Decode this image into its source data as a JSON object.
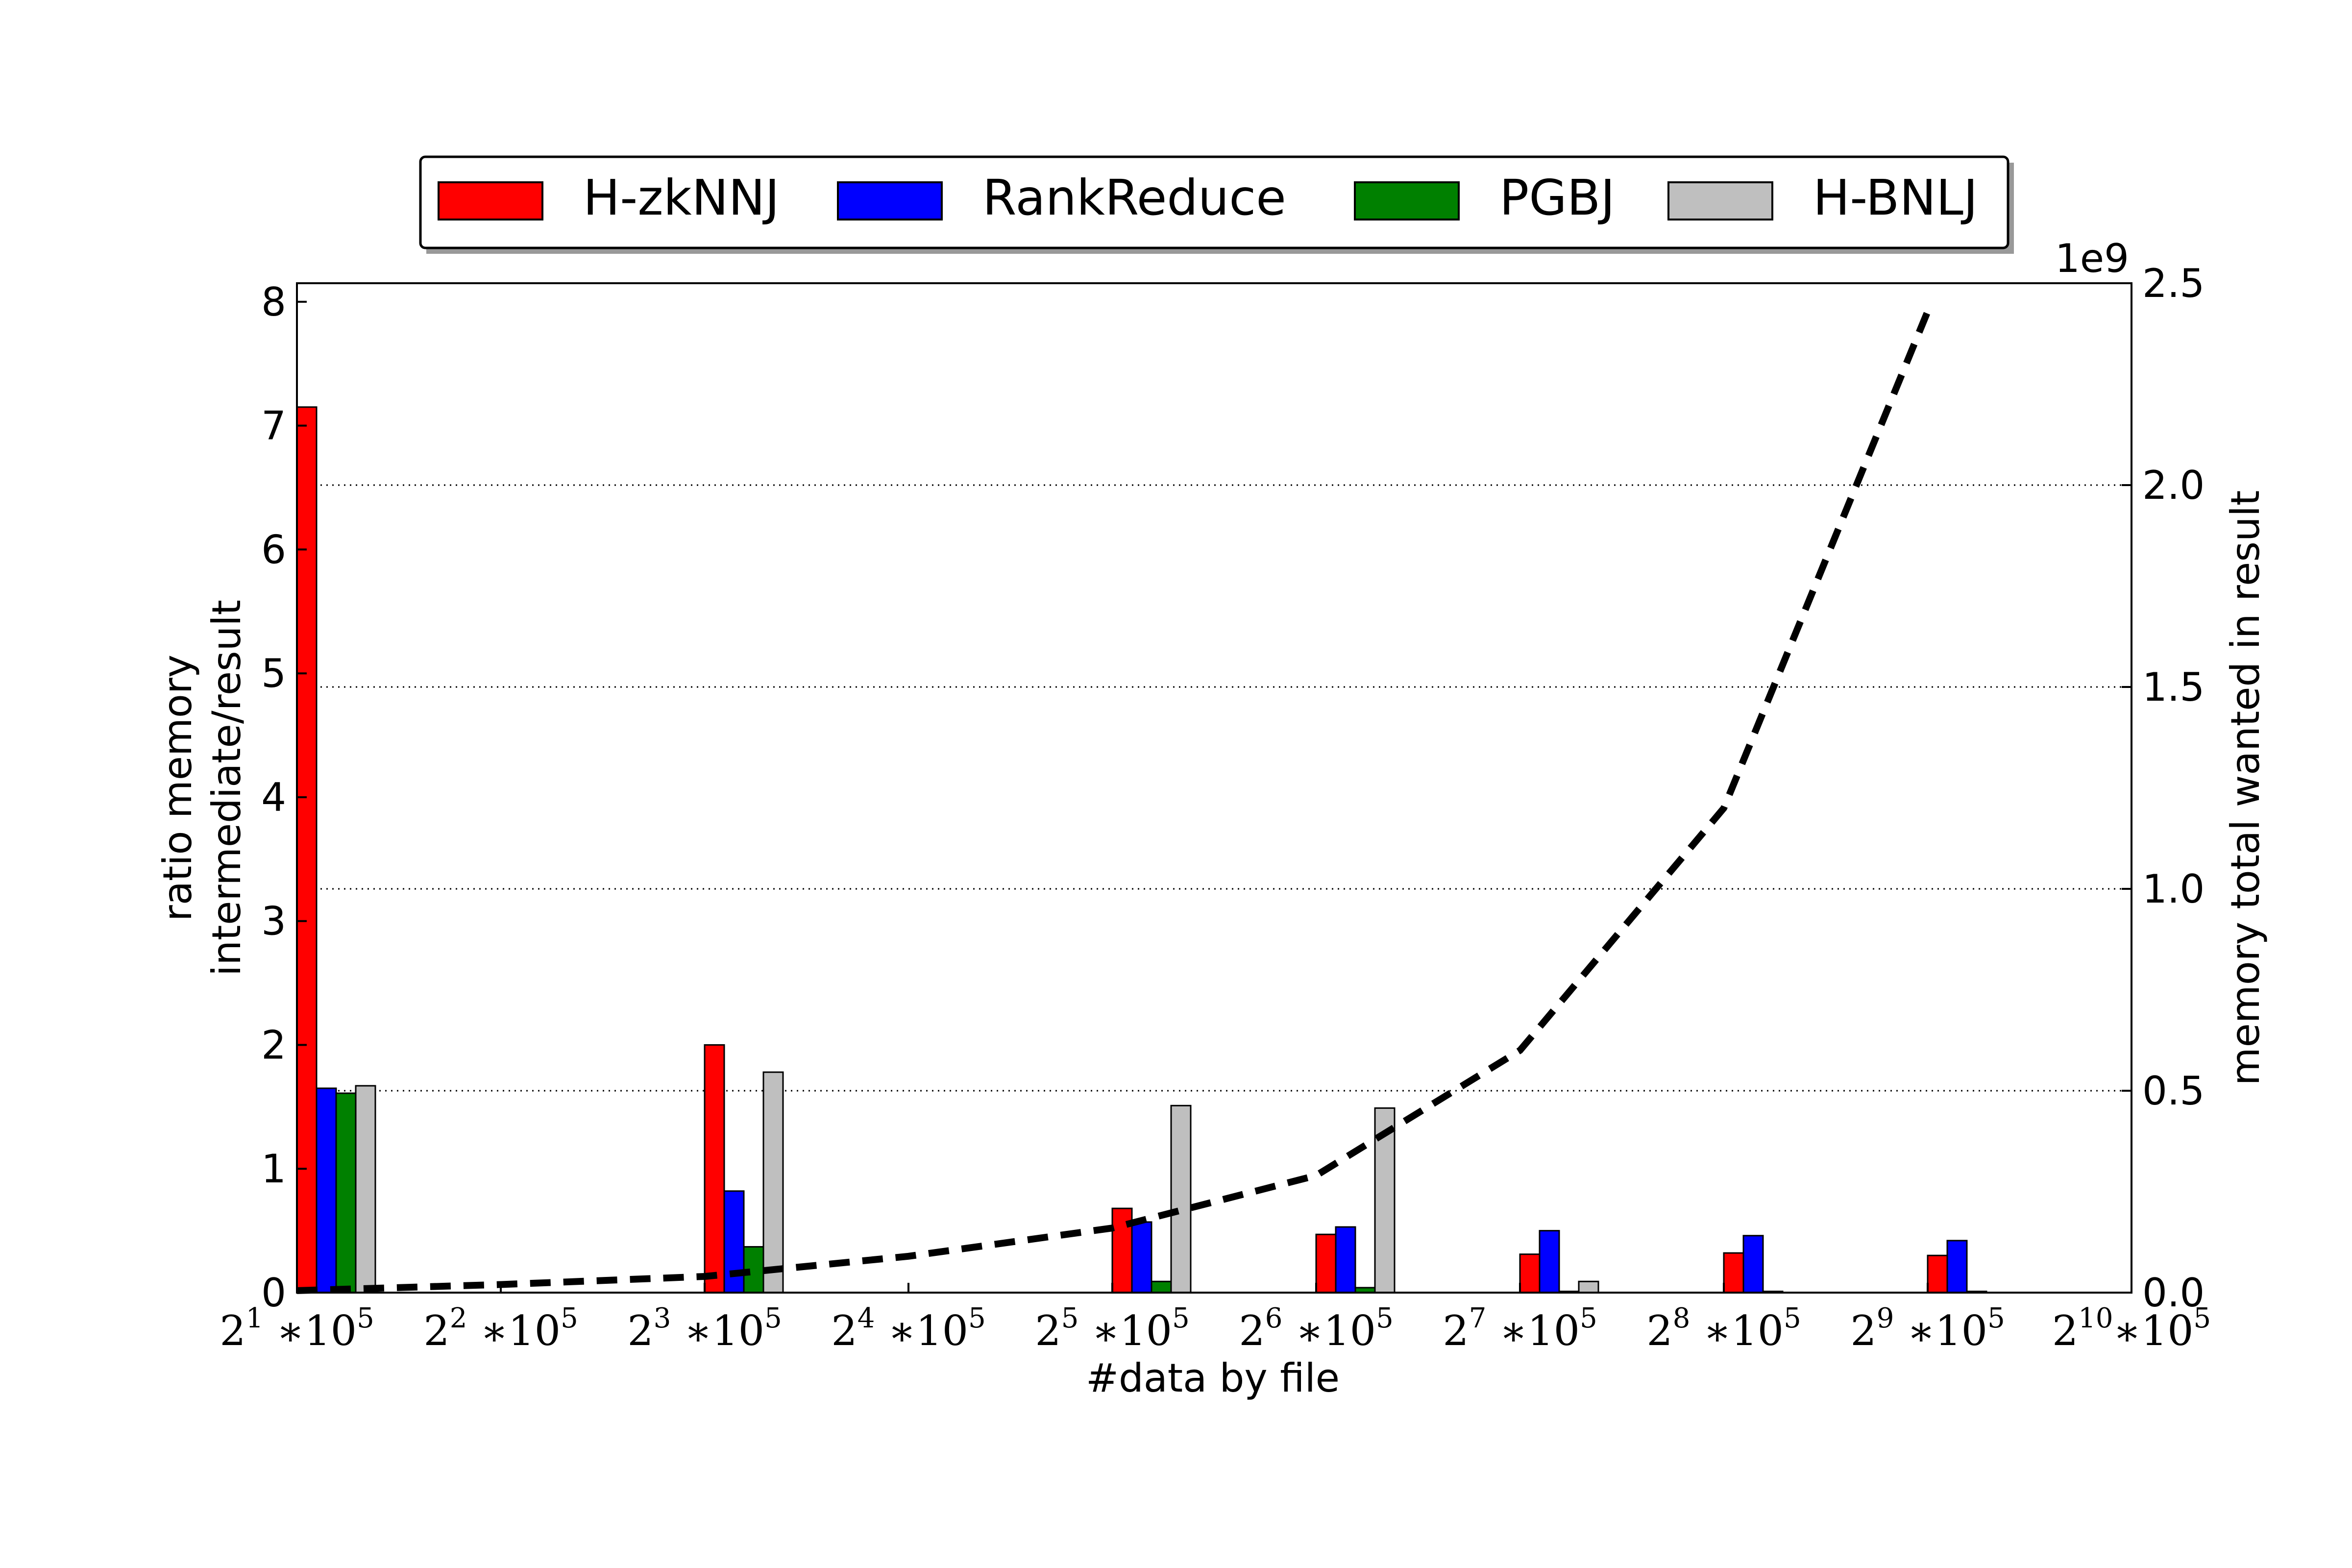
{
  "chart_data": {
    "type": "bar",
    "xlabel": "#data by file",
    "ylabel_left_line1": "ratio memory",
    "ylabel_left_line2": "intermediate/result",
    "ylabel_right": "memory total wanted in result",
    "right_axis_multiplier": "1e9",
    "x_tick_labels": [
      {
        "base": "2",
        "exp": "1",
        "suffix": " ∗10",
        "suffix_exp": "5"
      },
      {
        "base": "2",
        "exp": "2",
        "suffix": " ∗10",
        "suffix_exp": "5"
      },
      {
        "base": "2",
        "exp": "3",
        "suffix": " ∗10",
        "suffix_exp": "5"
      },
      {
        "base": "2",
        "exp": "4",
        "suffix": " ∗10",
        "suffix_exp": "5"
      },
      {
        "base": "2",
        "exp": "5",
        "suffix": " ∗10",
        "suffix_exp": "5"
      },
      {
        "base": "2",
        "exp": "6",
        "suffix": " ∗10",
        "suffix_exp": "5"
      },
      {
        "base": "2",
        "exp": "7",
        "suffix": " ∗10",
        "suffix_exp": "5"
      },
      {
        "base": "2",
        "exp": "8",
        "suffix": " ∗10",
        "suffix_exp": "5"
      },
      {
        "base": "2",
        "exp": "9",
        "suffix": " ∗10",
        "suffix_exp": "5"
      },
      {
        "base": "2",
        "exp": "10",
        "suffix": "∗10",
        "suffix_exp": "5"
      }
    ],
    "x_positions": [
      1,
      2,
      3,
      4,
      5,
      6,
      7,
      8,
      9,
      10
    ],
    "bar_x_positions": [
      1,
      3,
      5,
      6,
      7,
      8,
      9
    ],
    "ylim_left": [
      0,
      8.15
    ],
    "yticks_left": [
      "0",
      "1",
      "2",
      "3",
      "4",
      "5",
      "6",
      "7",
      "8"
    ],
    "ylim_right": [
      0,
      2.5
    ],
    "yticks_right": [
      "0.0",
      "0.5",
      "1.0",
      "1.5",
      "2.0",
      "2.5"
    ],
    "grid": "horizontal dotted at right-axis ticks",
    "legend_position": "top-center",
    "series": [
      {
        "name": "H-zkNNJ",
        "color": "#ff0000",
        "values": [
          7.15,
          2.0,
          0.68,
          0.47,
          0.31,
          0.32,
          0.3
        ]
      },
      {
        "name": "RankReduce",
        "color": "#0000ff",
        "values": [
          1.65,
          0.82,
          0.57,
          0.53,
          0.5,
          0.46,
          0.42
        ]
      },
      {
        "name": "PGBJ",
        "color": "#008000",
        "values": [
          1.61,
          0.37,
          0.09,
          0.04,
          0.01,
          0.01,
          0.01
        ]
      },
      {
        "name": "H-BNLJ",
        "color": "#bfbfbf",
        "values": [
          1.67,
          1.78,
          1.51,
          1.49,
          0.09,
          0.0,
          0.0
        ]
      }
    ],
    "line_series": {
      "style": "dashed black",
      "axis": "right",
      "x": [
        1,
        2,
        3,
        4,
        5,
        6,
        7,
        8,
        9
      ],
      "y": [
        0.005,
        0.02,
        0.04,
        0.09,
        0.16,
        0.29,
        0.6,
        1.2,
        2.43
      ]
    }
  }
}
